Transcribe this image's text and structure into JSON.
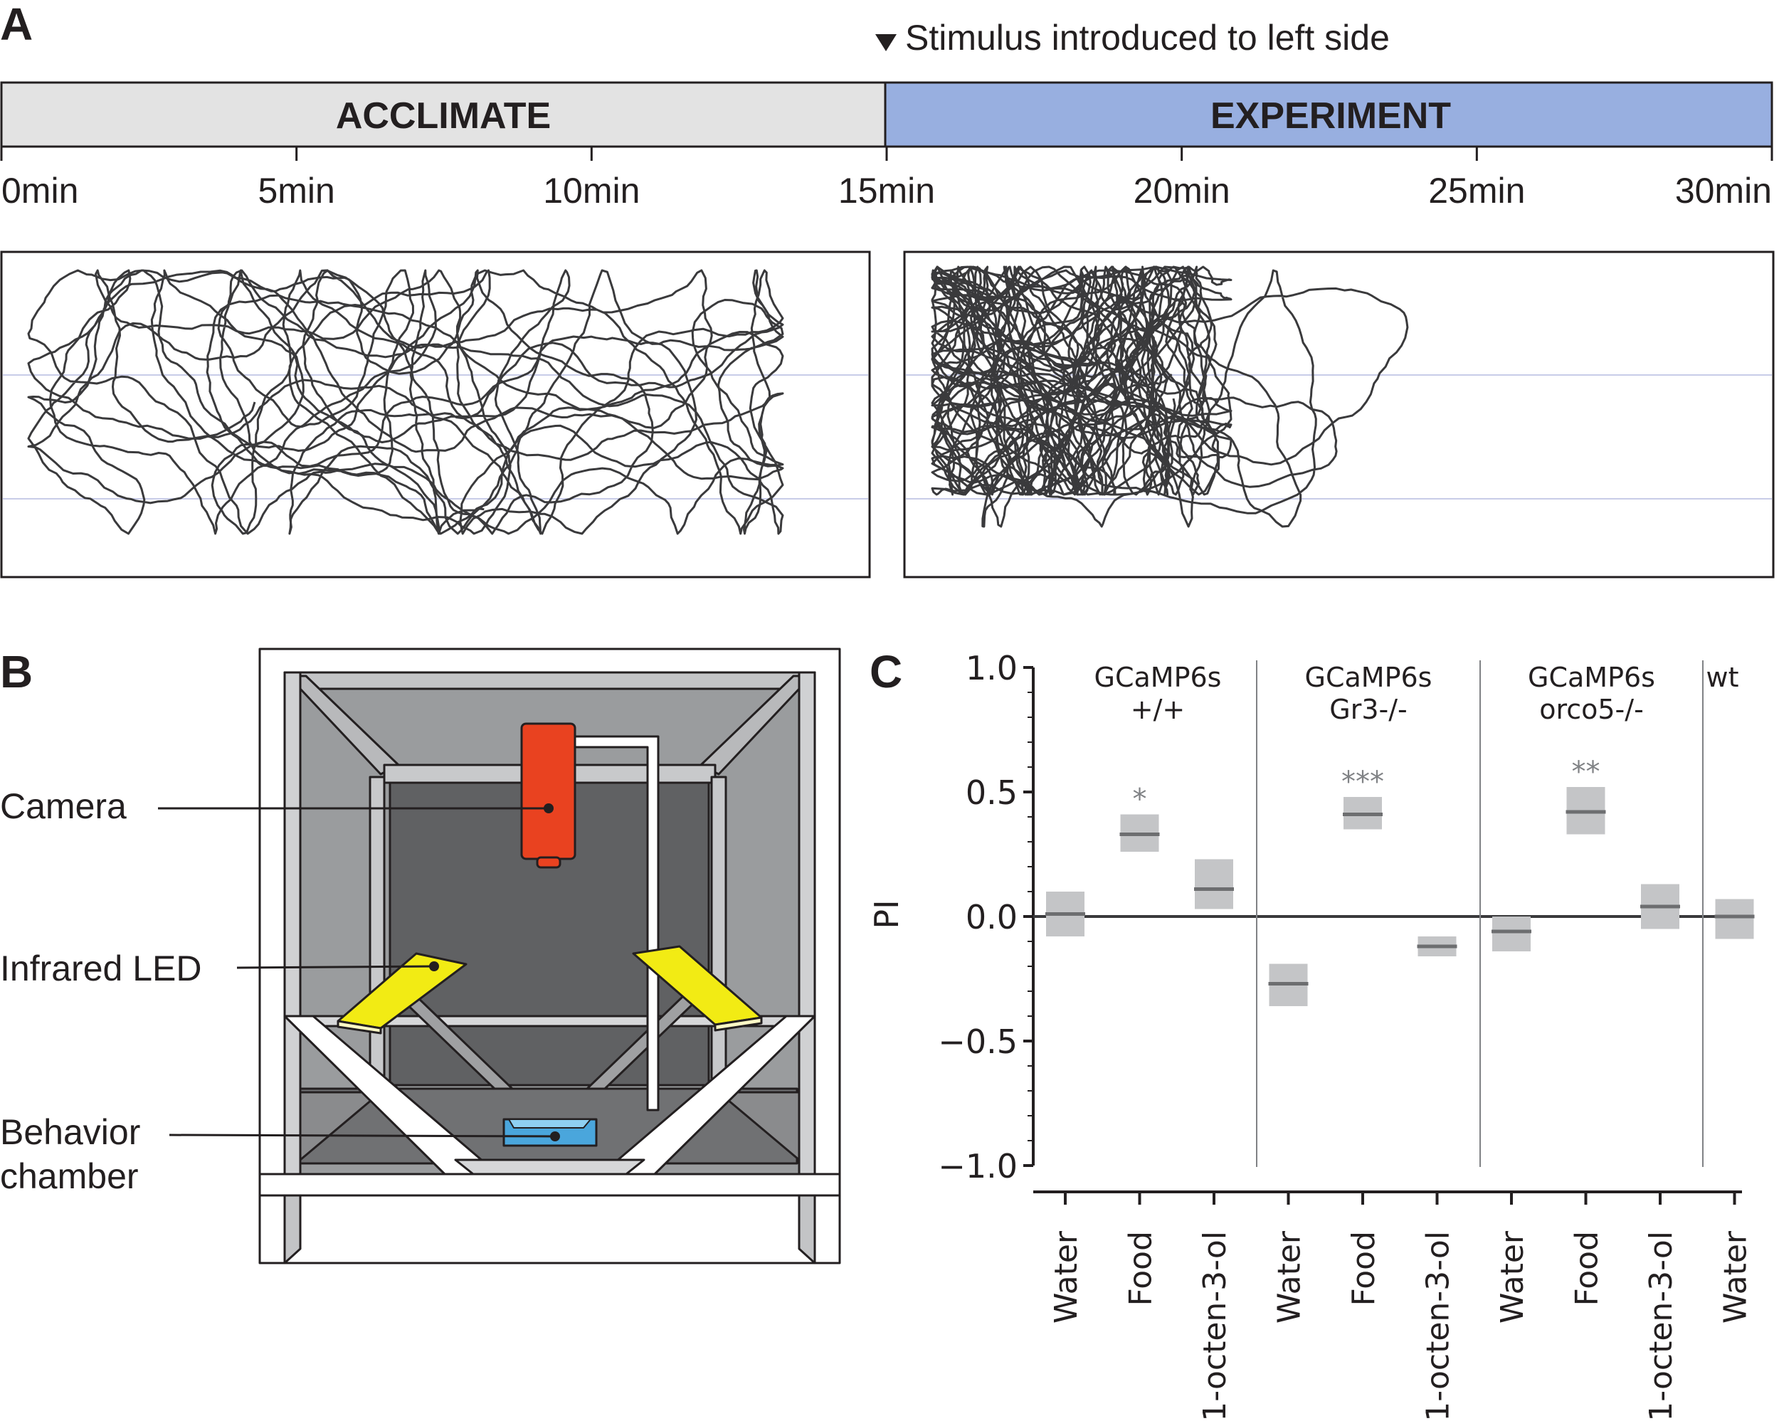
{
  "panel_letters": {
    "a": "A",
    "b": "B",
    "c": "C"
  },
  "timeline": {
    "stimulus_note": "Stimulus introduced to left side",
    "phase_acclimate": "ACCLIMATE",
    "phase_experiment": "EXPERIMENT",
    "ticks": [
      "0min",
      "5min",
      "10min",
      "15min",
      "20min",
      "25min",
      "30min"
    ],
    "colors": {
      "acclimate": "#e3e3e3",
      "experiment": "#98afe0"
    }
  },
  "apparatus": {
    "labels": {
      "camera": "Camera",
      "led": "Infrared LED",
      "chamber_line1": "Behavior",
      "chamber_line2": "chamber"
    },
    "colors": {
      "camera": "#e94220",
      "led": "#f2eb14",
      "chamber": "#4aa6dc"
    }
  },
  "chart_data": {
    "type": "scatter",
    "ylabel": "PI",
    "ylim": [
      -1.0,
      1.0
    ],
    "yticks": [
      "1.0",
      "0.5",
      "0.0",
      "−0.5",
      "−1.0"
    ],
    "groups": [
      {
        "line1": "GCaMP6s",
        "line2": "+/+"
      },
      {
        "line1": "GCaMP6s",
        "line2": "Gr3-/-"
      },
      {
        "line1": "GCaMP6s",
        "line2": "orco5-/-"
      },
      {
        "line1": "wt",
        "line2": ""
      }
    ],
    "categories": [
      "Water",
      "Food",
      "1-octen-3-ol",
      "Water",
      "Food",
      "1-octen-3-ol",
      "Water",
      "Food",
      "1-octen-3-ol",
      "Water"
    ],
    "mean": [
      0.01,
      0.33,
      0.11,
      -0.27,
      0.41,
      -0.12,
      -0.06,
      0.42,
      0.04,
      0.0
    ],
    "ci_low": [
      -0.08,
      0.26,
      0.03,
      -0.36,
      0.35,
      -0.16,
      -0.14,
      0.33,
      -0.05,
      -0.09
    ],
    "ci_high": [
      0.1,
      0.41,
      0.23,
      -0.19,
      0.48,
      -0.08,
      0.0,
      0.52,
      0.13,
      0.07
    ],
    "significance": [
      "",
      "*",
      "",
      "",
      "***",
      "",
      "",
      "**",
      "",
      ""
    ]
  }
}
